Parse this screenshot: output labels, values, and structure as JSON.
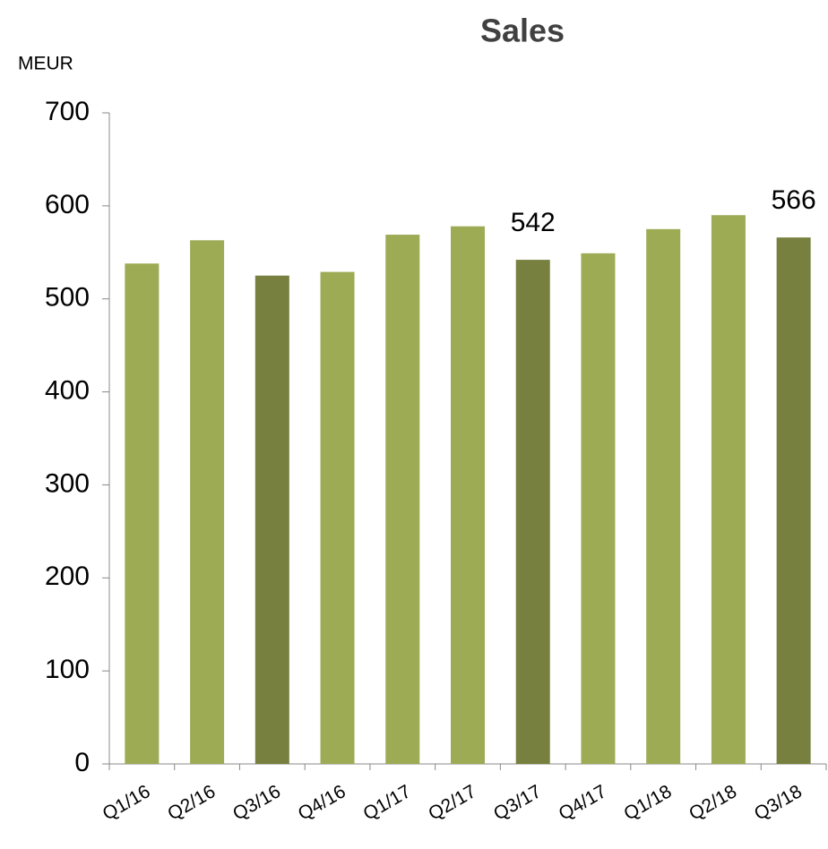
{
  "chart_data": {
    "type": "bar",
    "title": "Sales",
    "y_label": "MEUR",
    "categories": [
      "Q1/16",
      "Q2/16",
      "Q3/16",
      "Q4/16",
      "Q1/17",
      "Q2/17",
      "Q3/17",
      "Q4/17",
      "Q1/18",
      "Q2/18",
      "Q3/18"
    ],
    "values": [
      538,
      563,
      525,
      529,
      569,
      578,
      542,
      549,
      575,
      590,
      566
    ],
    "value_labels": [
      null,
      null,
      null,
      null,
      null,
      null,
      "542",
      null,
      null,
      null,
      "566"
    ],
    "colors": [
      "#9dab55",
      "#9dab55",
      "#77803f",
      "#9dab55",
      "#9dab55",
      "#9dab55",
      "#77803f",
      "#9dab55",
      "#9dab55",
      "#9dab55",
      "#77803f"
    ],
    "ylim": [
      0,
      700
    ],
    "yticks": [
      0,
      100,
      200,
      300,
      400,
      500,
      600,
      700
    ],
    "grid": false
  }
}
